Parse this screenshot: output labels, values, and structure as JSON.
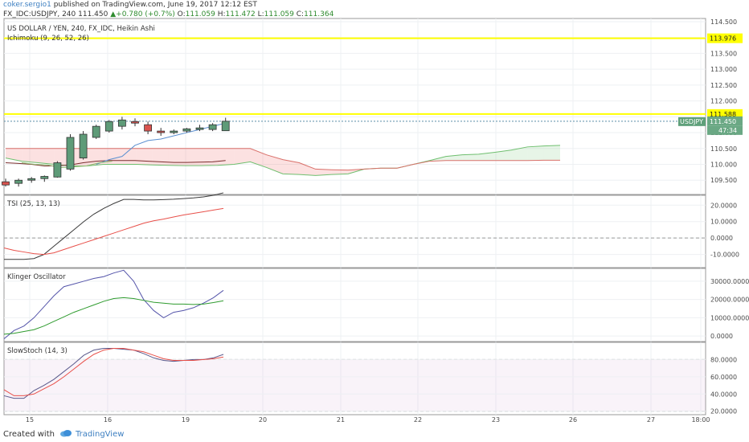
{
  "header": {
    "author": "coker.sergio1",
    "published_text": "published on TradingView.com, June 19, 2017 12:12 EST",
    "symbol": "FX_IDC:USDJPY, 240",
    "last": "111.450",
    "change": "+0.780 (+0.7%)",
    "ohlc": [
      "O:",
      "111.059",
      "H:",
      "111.472",
      "L:",
      "111.059",
      "C:",
      "111.364"
    ]
  },
  "footer": {
    "created_with": "Created with",
    "brand": "TradingView"
  },
  "chart_data": [
    {
      "type": "candlestick",
      "title": "US DOLLAR / YEN, 240, FX_IDC, Heikin Ashi",
      "indicator": "Ichimoku (9, 26, 52, 26)",
      "ylim": [
        109.05,
        114.6
      ],
      "yticks": [
        "114.500",
        "114.000",
        "113.500",
        "113.000",
        "112.500",
        "112.000",
        "111.500",
        "111.000",
        "110.500",
        "110.000",
        "109.500"
      ],
      "xticks": [
        "15",
        "16",
        "19",
        "20",
        "21",
        "22",
        "23",
        "26",
        "27",
        "18:00"
      ],
      "hlines": [
        {
          "value": 113.976,
          "label": "113.976",
          "color": "#ffff00"
        },
        {
          "value": 111.588,
          "label": "111.588",
          "color": "#ffff00"
        }
      ],
      "last_price_label": "USDJPY",
      "countdown": "47:34",
      "candles": [
        {
          "o": 109.45,
          "h": 109.55,
          "l": 109.3,
          "c": 109.35
        },
        {
          "o": 109.4,
          "h": 109.55,
          "l": 109.3,
          "c": 109.5
        },
        {
          "o": 109.5,
          "h": 109.6,
          "l": 109.42,
          "c": 109.55
        },
        {
          "o": 109.55,
          "h": 109.65,
          "l": 109.45,
          "c": 109.62
        },
        {
          "o": 109.6,
          "h": 110.1,
          "l": 109.58,
          "c": 110.05
        },
        {
          "o": 109.85,
          "h": 110.95,
          "l": 109.8,
          "c": 110.85
        },
        {
          "o": 110.2,
          "h": 111.05,
          "l": 110.15,
          "c": 110.95
        },
        {
          "o": 110.85,
          "h": 111.25,
          "l": 110.8,
          "c": 111.2
        },
        {
          "o": 111.05,
          "h": 111.4,
          "l": 111.0,
          "c": 111.35
        },
        {
          "o": 111.2,
          "h": 111.5,
          "l": 111.1,
          "c": 111.4
        },
        {
          "o": 111.35,
          "h": 111.45,
          "l": 111.2,
          "c": 111.3
        },
        {
          "o": 111.25,
          "h": 111.35,
          "l": 110.95,
          "c": 111.05
        },
        {
          "o": 111.05,
          "h": 111.15,
          "l": 110.9,
          "c": 111.0
        },
        {
          "o": 111.0,
          "h": 111.1,
          "l": 110.95,
          "c": 111.05
        },
        {
          "o": 111.05,
          "h": 111.15,
          "l": 111.0,
          "c": 111.12
        },
        {
          "o": 111.1,
          "h": 111.25,
          "l": 111.05,
          "c": 111.15
        },
        {
          "o": 111.1,
          "h": 111.3,
          "l": 111.05,
          "c": 111.25
        },
        {
          "o": 111.06,
          "h": 111.47,
          "l": 111.06,
          "c": 111.36
        }
      ],
      "ichimoku": {
        "span_a": [
          110.2,
          110.1,
          110.05,
          110.0,
          109.95,
          109.95,
          110.0,
          110.0,
          110.0,
          109.98,
          109.97,
          109.96,
          109.96,
          109.97,
          110.0,
          110.08,
          109.9,
          109.7,
          109.68,
          109.65,
          109.68,
          109.7,
          109.85,
          109.88,
          109.88,
          110.0,
          110.12,
          110.25,
          110.3,
          110.32,
          110.38,
          110.45,
          110.55,
          110.58,
          110.6
        ],
        "span_b": [
          110.5,
          110.5,
          110.5,
          110.5,
          110.5,
          110.5,
          110.5,
          110.5,
          110.5,
          110.5,
          110.5,
          110.5,
          110.5,
          110.5,
          110.5,
          110.5,
          110.3,
          110.15,
          110.05,
          109.85,
          109.83,
          109.82,
          109.85,
          109.88,
          109.88,
          110.0,
          110.1,
          110.12,
          110.12,
          110.12,
          110.12,
          110.12,
          110.12,
          110.13,
          110.13
        ],
        "conversion": [
          null,
          null,
          null,
          null,
          null,
          null,
          null,
          110.0,
          110.15,
          110.25,
          110.6,
          110.75,
          110.8,
          110.9,
          111.0,
          111.1,
          111.2,
          111.3
        ],
        "base": [
          110.05,
          110.03,
          110.0,
          109.95,
          109.95,
          109.98,
          110.05,
          110.1,
          110.12,
          110.12,
          110.12,
          110.1,
          110.08,
          110.06,
          110.06,
          110.07,
          110.08,
          110.12
        ],
        "lagging": [
          110.05,
          110.0,
          109.98,
          109.9,
          109.92,
          109.95,
          110.05,
          110.1
        ]
      }
    },
    {
      "type": "line",
      "title": "TSI (25, 13, 13)",
      "ylim": [
        -18,
        26
      ],
      "yticks": [
        "20.0000",
        "10.0000",
        "0.0000",
        "-10.0000"
      ],
      "hline": 0,
      "series": [
        {
          "color": "#3a3a3a",
          "values": [
            -13,
            -13,
            -13,
            -12.5,
            -10,
            -5,
            0,
            5,
            10,
            14.5,
            18,
            21,
            23.5,
            23.5,
            23.2,
            23.2,
            23.4,
            23.6,
            24,
            24.4,
            25,
            26,
            27.5
          ]
        },
        {
          "color": "#e8504a",
          "values": [
            -6,
            -7.5,
            -8.5,
            -9.5,
            -10,
            -9,
            -7,
            -5,
            -3,
            -1,
            1,
            3,
            5,
            7,
            9,
            10.5,
            11.5,
            12.8,
            14,
            15,
            16,
            17,
            18
          ]
        }
      ]
    },
    {
      "type": "line",
      "title": "Klinger Oscillator",
      "ylim": [
        -3000,
        37000
      ],
      "yticks": [
        "30000.0000",
        "20000.0000",
        "10000.0000",
        "0.0000"
      ],
      "series": [
        {
          "color": "#5555aa",
          "values": [
            -1500,
            3000,
            5500,
            10000,
            16000,
            22000,
            27000,
            28500,
            30000,
            31500,
            32500,
            34500,
            36000,
            30000,
            20000,
            14000,
            10000,
            13000,
            14000,
            15500,
            18000,
            21000,
            25000
          ]
        },
        {
          "color": "#2e9b2e",
          "values": [
            1000,
            1500,
            2500,
            3500,
            5500,
            8000,
            10500,
            13000,
            15000,
            17000,
            19000,
            20500,
            21000,
            20500,
            19500,
            18500,
            18000,
            17500,
            17500,
            17300,
            17500,
            18300,
            19300
          ]
        }
      ]
    },
    {
      "type": "line",
      "title": "SlowStoch (14, 3)",
      "ylim": [
        16,
        100
      ],
      "yticks": [
        "80.0000",
        "60.0000",
        "40.0000",
        "20.0000"
      ],
      "band": [
        20,
        80
      ],
      "series": [
        {
          "color": "#5a5a8c",
          "values": [
            38,
            35,
            35,
            44,
            50,
            57,
            66,
            75,
            85,
            91,
            93,
            93,
            92,
            91,
            87,
            82,
            79,
            78,
            79,
            80,
            80,
            82,
            86
          ]
        },
        {
          "color": "#e8504a",
          "values": [
            45,
            38,
            38,
            40,
            46,
            52,
            60,
            69,
            78,
            86,
            91,
            93,
            93,
            91,
            89,
            85,
            81,
            79,
            79,
            79,
            80,
            81,
            83
          ]
        }
      ]
    }
  ]
}
